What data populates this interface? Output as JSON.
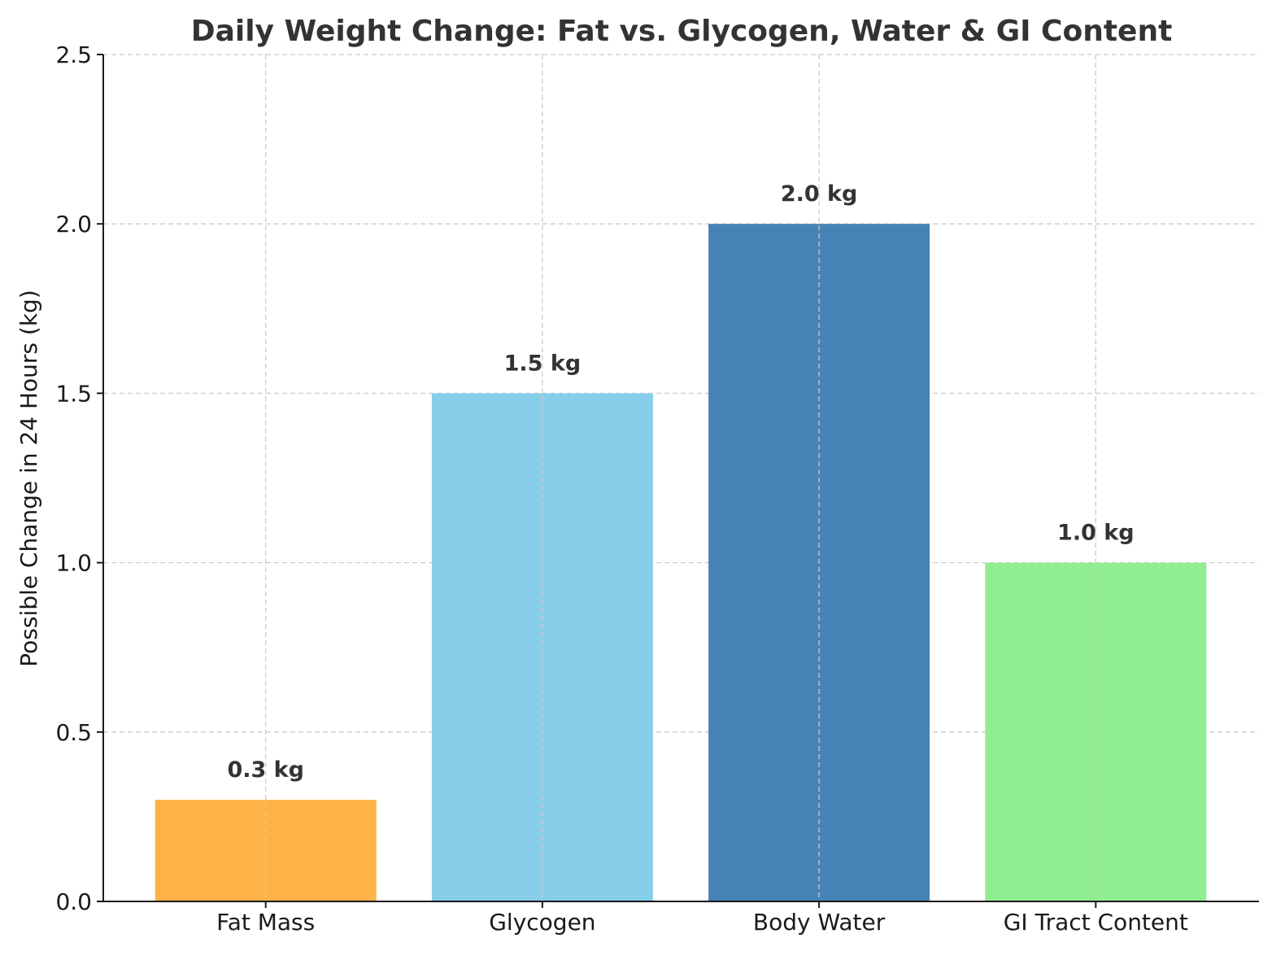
{
  "chart_data": {
    "type": "bar",
    "title": "Daily Weight Change: Fat vs. Glycogen, Water & GI Content",
    "xlabel": "",
    "ylabel": "Possible Change in 24 Hours (kg)",
    "ylim": [
      0,
      2.5
    ],
    "yticks": [
      "0.0",
      "0.5",
      "1.0",
      "1.5",
      "2.0",
      "2.5"
    ],
    "categories": [
      "Fat Mass",
      "Glycogen",
      "Body Water",
      "GI Tract Content"
    ],
    "values": [
      0.3,
      1.5,
      2.0,
      1.0
    ],
    "data_labels": [
      "0.3 kg",
      "1.5 kg",
      "2.0 kg",
      "1.0 kg"
    ],
    "colors": [
      "#FFB347",
      "#87CEEB",
      "#4682B4",
      "#90EE90"
    ],
    "grid": true,
    "legend": "none"
  }
}
